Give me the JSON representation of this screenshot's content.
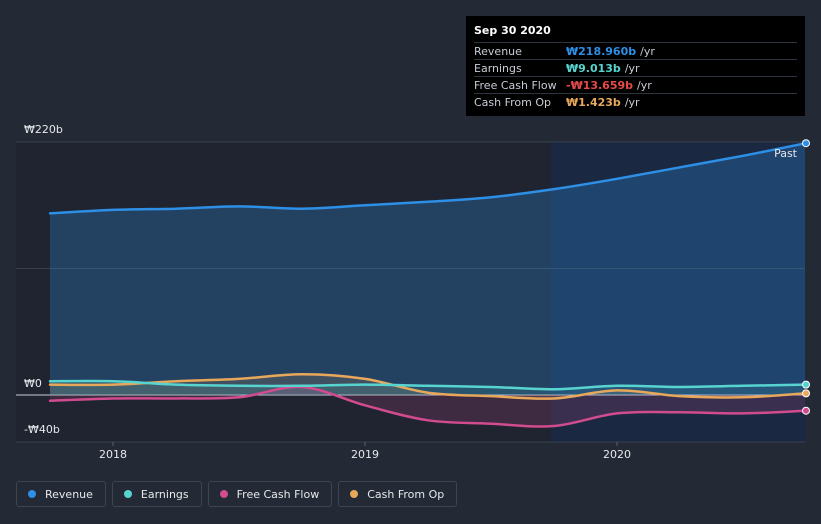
{
  "chart_data": {
    "type": "area",
    "title": "",
    "xlabel": "",
    "ylabel": "",
    "ylim": [
      -40,
      220
    ],
    "y_tick_labels": [
      "₩220b",
      "₩0",
      "-₩40b"
    ],
    "x_tick_labels": [
      "2018",
      "2019",
      "2020"
    ],
    "region_label": "Past",
    "x": [
      2017.75,
      2018.0,
      2018.25,
      2018.5,
      2018.75,
      2019.0,
      2019.25,
      2019.5,
      2019.75,
      2020.0,
      2020.25,
      2020.5,
      2020.75
    ],
    "series": [
      {
        "name": "Revenue",
        "color": "#2d8fe6",
        "values": [
          158,
          161,
          162,
          164,
          162,
          165,
          168,
          172,
          179,
          188,
          198,
          208,
          218.96
        ]
      },
      {
        "name": "Earnings",
        "color": "#58d4d0",
        "values": [
          12,
          12,
          9,
          8,
          8,
          9,
          8,
          7,
          5,
          8,
          7,
          8,
          9.013
        ]
      },
      {
        "name": "Free Cash Flow",
        "color": "#d14b8f",
        "values": [
          -5,
          -3,
          -3,
          -2,
          7,
          -9,
          -22,
          -25,
          -27,
          -16,
          -15,
          -16,
          -13.659
        ]
      },
      {
        "name": "Cash From Op",
        "color": "#e8a85b",
        "values": [
          9,
          9,
          12,
          14,
          18,
          14,
          2,
          -1,
          -3,
          4,
          -1,
          -2,
          1.423
        ]
      }
    ]
  },
  "tooltip": {
    "date": "Sep 30 2020",
    "rows": [
      {
        "label": "Revenue",
        "value": "₩218.960b",
        "unit": "/yr",
        "color": "#2d8fe6"
      },
      {
        "label": "Earnings",
        "value": "₩9.013b",
        "unit": "/yr",
        "color": "#58d4d0"
      },
      {
        "label": "Free Cash Flow",
        "value": "-₩13.659b",
        "unit": "/yr",
        "color": "#e84a4a"
      },
      {
        "label": "Cash From Op",
        "value": "₩1.423b",
        "unit": "/yr",
        "color": "#e8a85b"
      }
    ]
  },
  "legend": [
    {
      "label": "Revenue",
      "color": "#2d8fe6"
    },
    {
      "label": "Earnings",
      "color": "#58d4d0"
    },
    {
      "label": "Free Cash Flow",
      "color": "#d14b8f"
    },
    {
      "label": "Cash From Op",
      "color": "#e8a85b"
    }
  ]
}
